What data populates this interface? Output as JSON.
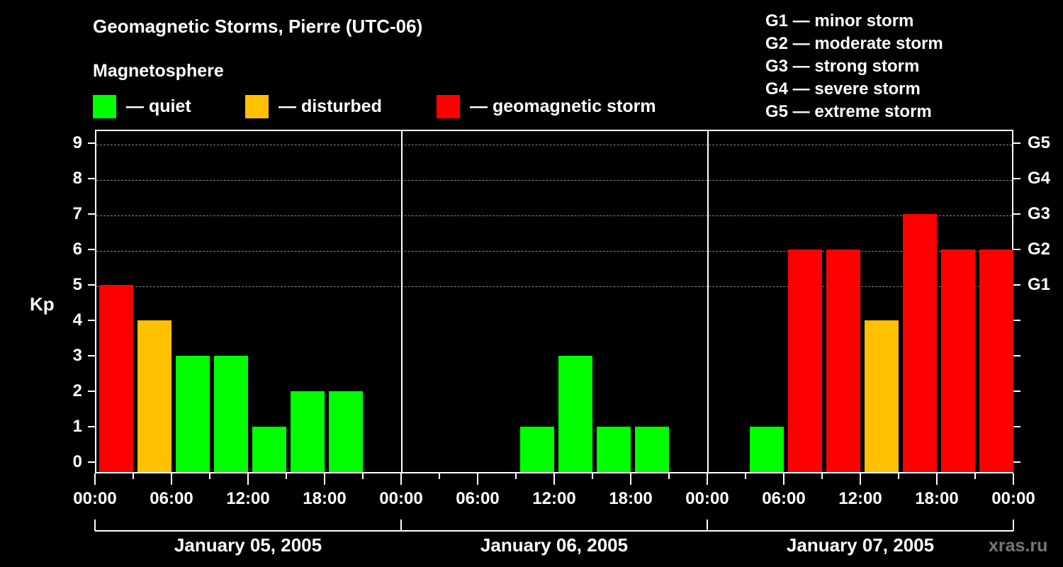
{
  "header": {
    "title": "Geomagnetic Storms, Pierre (UTC-06)",
    "subtitle": "Magnetosphere"
  },
  "legend": [
    {
      "label": "— quiet",
      "color": "#00ff00"
    },
    {
      "label": "— disturbed",
      "color": "#ffc000"
    },
    {
      "label": "— geomagnetic storm",
      "color": "#ff0000"
    }
  ],
  "storm_scale": [
    "G1 — minor storm",
    "G2 — moderate storm",
    "G3 — strong storm",
    "G4 — severe storm",
    "G5 — extreme storm"
  ],
  "watermark": "xras.ru",
  "chart_data": {
    "type": "bar",
    "title": "Geomagnetic Storms, Pierre (UTC-06)",
    "xlabel": "",
    "ylabel": "Kp",
    "ylim": [
      0,
      9
    ],
    "yticks": [
      0,
      1,
      2,
      3,
      4,
      5,
      6,
      7,
      8,
      9
    ],
    "right_axis_labels": {
      "5": "G1",
      "6": "G2",
      "7": "G3",
      "8": "G4",
      "9": "G5"
    },
    "grid": "dashed horizontal at Kp 5-9",
    "xtick_labels": [
      "00:00",
      "06:00",
      "12:00",
      "18:00",
      "00:00",
      "06:00",
      "12:00",
      "18:00",
      "00:00",
      "06:00",
      "12:00",
      "18:00",
      "00:00"
    ],
    "days": [
      "January 05, 2005",
      "January 06, 2005",
      "January 07, 2005"
    ],
    "interval_hours": 3,
    "categories": [
      "Jan05 00-03",
      "Jan05 03-06",
      "Jan05 06-09",
      "Jan05 09-12",
      "Jan05 12-15",
      "Jan05 15-18",
      "Jan05 18-21",
      "Jan05 21-24",
      "Jan06 00-03",
      "Jan06 03-06",
      "Jan06 06-09",
      "Jan06 09-12",
      "Jan06 12-15",
      "Jan06 15-18",
      "Jan06 18-21",
      "Jan06 21-24",
      "Jan07 00-03",
      "Jan07 03-06",
      "Jan07 06-09",
      "Jan07 09-12",
      "Jan07 12-15",
      "Jan07 15-18",
      "Jan07 18-21",
      "Jan07 21-24"
    ],
    "values": [
      5,
      4,
      3,
      3,
      1,
      2,
      2,
      null,
      null,
      null,
      null,
      1,
      3,
      1,
      1,
      null,
      null,
      1,
      6,
      6,
      4,
      7,
      6,
      6
    ],
    "status": [
      "storm",
      "disturbed",
      "quiet",
      "quiet",
      "quiet",
      "quiet",
      "quiet",
      null,
      null,
      null,
      null,
      "quiet",
      "quiet",
      "quiet",
      "quiet",
      null,
      null,
      "quiet",
      "storm",
      "storm",
      "disturbed",
      "storm",
      "storm",
      "storm"
    ],
    "colors": {
      "quiet": "#00ff00",
      "disturbed": "#ffc000",
      "storm": "#ff0000"
    }
  }
}
